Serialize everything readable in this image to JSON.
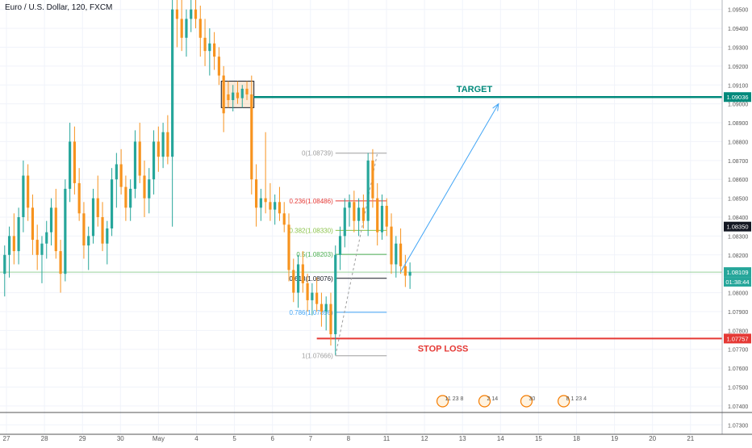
{
  "header": {
    "title": "Euro / U.S. Dollar, 120, FXCM"
  },
  "chart_data": {
    "type": "candlestick",
    "symbol": "Euro / U.S. Dollar",
    "timeframe": "120",
    "source": "FXCM",
    "ylim": [
      1.0725,
      1.0955
    ],
    "y_ticks": [
      "1.09500",
      "1.09400",
      "1.09300",
      "1.09200",
      "1.09100",
      "1.09000",
      "1.08900",
      "1.08800",
      "1.08700",
      "1.08600",
      "1.08500",
      "1.08400",
      "1.08300",
      "1.08200",
      "1.08100",
      "1.08000",
      "1.07900",
      "1.07800",
      "1.07700",
      "1.07600",
      "1.07500",
      "1.07400",
      "1.07300"
    ],
    "x_ticks": [
      "27",
      "28",
      "29",
      "30",
      "May",
      "4",
      "5",
      "6",
      "7",
      "8",
      "11",
      "12",
      "13",
      "14",
      "15",
      "18",
      "19",
      "20",
      "21"
    ],
    "colors": {
      "up": "#26a69a",
      "down": "#f7931e",
      "grid": "#f0f3fa",
      "axis": "#555555",
      "target": "#00897b",
      "stop": "#e53935"
    },
    "price_labels": {
      "target": "1.09036",
      "high_marker": "1.08350",
      "current": "1.08109",
      "countdown": "01:38:44",
      "stop": "1.07757"
    },
    "annotations": {
      "target_label": "TARGET",
      "stop_label": "STOP LOSS"
    },
    "fibonacci": [
      {
        "label": "0(1.08739)",
        "value": 1.08739,
        "color": "#9e9e9e"
      },
      {
        "label": "0.236(1.08486)",
        "value": 1.08486,
        "color": "#e53935"
      },
      {
        "label": "0.382(1.08330)",
        "value": 1.0833,
        "color": "#8bc34a"
      },
      {
        "label": "0.5(1.08203)",
        "value": 1.08203,
        "color": "#4caf50"
      },
      {
        "label": "0.618(1.08076)",
        "value": 1.08076,
        "color": "#131722"
      },
      {
        "label": "0.786(1.07896)",
        "value": 1.07896,
        "color": "#42a5f5"
      },
      {
        "label": "1(1.07666)",
        "value": 1.07666,
        "color": "#9e9e9e"
      }
    ],
    "levels": {
      "target": 1.09036,
      "stop": 1.07757,
      "current": 1.08109
    },
    "rect_zone": {
      "high": 1.0912,
      "low": 1.0898
    },
    "candles": [
      [
        1.081,
        1.0825,
        1.0798,
        1.082
      ],
      [
        1.082,
        1.0835,
        1.0808,
        1.083
      ],
      [
        1.083,
        1.0842,
        1.0815,
        1.0822
      ],
      [
        1.0822,
        1.0845,
        1.0815,
        1.084
      ],
      [
        1.084,
        1.087,
        1.0832,
        1.0862
      ],
      [
        1.0862,
        1.0868,
        1.0838,
        1.0845
      ],
      [
        1.0845,
        1.0852,
        1.082,
        1.0828
      ],
      [
        1.0828,
        1.0836,
        1.0812,
        1.082
      ],
      [
        1.082,
        1.083,
        1.0805,
        1.0826
      ],
      [
        1.0826,
        1.0838,
        1.0818,
        1.0832
      ],
      [
        1.0832,
        1.085,
        1.0825,
        1.0845
      ],
      [
        1.0845,
        1.0855,
        1.0818,
        1.0822
      ],
      [
        1.0822,
        1.0828,
        1.08,
        1.081
      ],
      [
        1.081,
        1.086,
        1.0806,
        1.0855
      ],
      [
        1.0855,
        1.089,
        1.0848,
        1.088
      ],
      [
        1.088,
        1.0888,
        1.0852,
        1.0858
      ],
      [
        1.0858,
        1.0866,
        1.0838,
        1.0842
      ],
      [
        1.0842,
        1.0848,
        1.0818,
        1.0825
      ],
      [
        1.0825,
        1.0835,
        1.0812,
        1.083
      ],
      [
        1.083,
        1.0855,
        1.0826,
        1.085
      ],
      [
        1.085,
        1.0862,
        1.0835,
        1.084
      ],
      [
        1.084,
        1.0848,
        1.0822,
        1.0826
      ],
      [
        1.0826,
        1.0838,
        1.0815,
        1.0834
      ],
      [
        1.0834,
        1.0866,
        1.083,
        1.086
      ],
      [
        1.086,
        1.0874,
        1.0845,
        1.0868
      ],
      [
        1.0868,
        1.0876,
        1.0852,
        1.0856
      ],
      [
        1.0856,
        1.0862,
        1.0838,
        1.0845
      ],
      [
        1.0845,
        1.086,
        1.0838,
        1.0855
      ],
      [
        1.0855,
        1.0886,
        1.085,
        1.088
      ],
      [
        1.088,
        1.089,
        1.0858,
        1.0862
      ],
      [
        1.0862,
        1.087,
        1.084,
        1.085
      ],
      [
        1.085,
        1.0866,
        1.0842,
        1.086
      ],
      [
        1.086,
        1.0886,
        1.0852,
        1.088
      ],
      [
        1.088,
        1.0888,
        1.0864,
        1.0872
      ],
      [
        1.0872,
        1.089,
        1.0866,
        1.0885
      ],
      [
        1.0885,
        1.0894,
        1.0868,
        1.0872
      ],
      [
        1.0872,
        1.096,
        1.0835,
        1.095
      ],
      [
        1.095,
        1.0962,
        1.093,
        1.0945
      ],
      [
        1.0945,
        1.0958,
        1.0928,
        1.0935
      ],
      [
        1.0935,
        1.095,
        1.0925,
        1.0945
      ],
      [
        1.0945,
        1.096,
        1.0938,
        1.095
      ],
      [
        1.095,
        1.096,
        1.094,
        1.0945
      ],
      [
        1.0945,
        1.0952,
        1.0925,
        1.0935
      ],
      [
        1.0935,
        1.0945,
        1.092,
        1.0928
      ],
      [
        1.0928,
        1.094,
        1.0915,
        1.0932
      ],
      [
        1.0932,
        1.0938,
        1.0918,
        1.0925
      ],
      [
        1.0925,
        1.093,
        1.091,
        1.0915
      ],
      [
        1.0915,
        1.092,
        1.0885,
        1.0895
      ],
      [
        1.0905,
        1.0912,
        1.0898,
        1.0902
      ],
      [
        1.0902,
        1.091,
        1.0896,
        1.0906
      ],
      [
        1.0906,
        1.0912,
        1.09,
        1.0903
      ],
      [
        1.0903,
        1.091,
        1.0898,
        1.0908
      ],
      [
        1.0908,
        1.0912,
        1.0902,
        1.0905
      ],
      [
        1.0905,
        1.0915,
        1.0852,
        1.086
      ],
      [
        1.086,
        1.0868,
        1.0835,
        1.0845
      ],
      [
        1.0845,
        1.0855,
        1.0838,
        1.085
      ],
      [
        1.085,
        1.0885,
        1.0842,
        1.0848
      ],
      [
        1.0848,
        1.0858,
        1.0838,
        1.0844
      ],
      [
        1.0844,
        1.0852,
        1.0836,
        1.0848
      ],
      [
        1.0848,
        1.0856,
        1.0838,
        1.0842
      ],
      [
        1.0842,
        1.0848,
        1.0832,
        1.0836
      ],
      [
        1.0836,
        1.0842,
        1.0806,
        1.0812
      ],
      [
        1.0812,
        1.0818,
        1.0795,
        1.08
      ],
      [
        1.08,
        1.082,
        1.0792,
        1.0815
      ],
      [
        1.0815,
        1.0822,
        1.08,
        1.0805
      ],
      [
        1.0805,
        1.081,
        1.079,
        1.0796
      ],
      [
        1.0796,
        1.0805,
        1.0788,
        1.08
      ],
      [
        1.08,
        1.0808,
        1.079,
        1.0794
      ],
      [
        1.0794,
        1.08,
        1.0782,
        1.079
      ],
      [
        1.079,
        1.0798,
        1.078,
        1.0794
      ],
      [
        1.0794,
        1.08,
        1.0772,
        1.0778
      ],
      [
        1.0778,
        1.0825,
        1.0767,
        1.082
      ],
      [
        1.082,
        1.0835,
        1.0812,
        1.083
      ],
      [
        1.083,
        1.085,
        1.0824,
        1.0845
      ],
      [
        1.0845,
        1.0852,
        1.0835,
        1.0848
      ],
      [
        1.0848,
        1.0854,
        1.0832,
        1.0838
      ],
      [
        1.0838,
        1.085,
        1.083,
        1.0845
      ],
      [
        1.0845,
        1.0852,
        1.0834,
        1.0838
      ],
      [
        1.0838,
        1.0874,
        1.083,
        1.087
      ],
      [
        1.087,
        1.0876,
        1.0845,
        1.085
      ],
      [
        1.085,
        1.0858,
        1.0825,
        1.0832
      ],
      [
        1.0832,
        1.0852,
        1.0828,
        1.0846
      ],
      [
        1.0846,
        1.085,
        1.083,
        1.0835
      ],
      [
        1.0835,
        1.0842,
        1.081,
        1.0815
      ],
      [
        1.0815,
        1.083,
        1.0808,
        1.0826
      ],
      [
        1.0826,
        1.0834,
        1.081,
        1.0814
      ],
      [
        1.0814,
        1.082,
        1.0803,
        1.0809
      ],
      [
        1.0809,
        1.0816,
        1.0802,
        1.0811
      ]
    ],
    "x_range": [
      -1,
      154
    ],
    "forecast_arrow": {
      "from": [
        85,
        1.0811
      ],
      "to": [
        106,
        1.09
      ]
    },
    "fib_x_range": [
      71,
      82
    ],
    "event_markers": [
      {
        "label": "11 23 8",
        "x": 94
      },
      {
        "label": "2 14",
        "x": 103
      },
      {
        "label": "30",
        "x": 112
      },
      {
        "label": "8 1 23 4",
        "x": 120
      }
    ]
  }
}
